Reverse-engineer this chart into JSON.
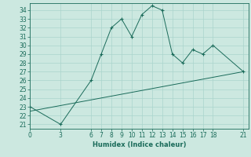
{
  "xlabel": "Humidex (Indice chaleur)",
  "ylabel": "",
  "bg_color": "#cce8e0",
  "grid_color": "#aad4cc",
  "line_color": "#1a6b5a",
  "x_ticks": [
    0,
    3,
    6,
    7,
    8,
    9,
    10,
    11,
    12,
    13,
    14,
    15,
    16,
    17,
    18,
    21
  ],
  "y_ticks": [
    21,
    22,
    23,
    24,
    25,
    26,
    27,
    28,
    29,
    30,
    31,
    32,
    33,
    34
  ],
  "ylim": [
    20.5,
    34.8
  ],
  "xlim": [
    0,
    21.5
  ],
  "line1_x": [
    0,
    3,
    6,
    7,
    8,
    9,
    10,
    11,
    12,
    13,
    14,
    15,
    16,
    17,
    18,
    21
  ],
  "line1_y": [
    23.0,
    21.0,
    26.0,
    29.0,
    32.0,
    33.0,
    31.0,
    33.5,
    34.5,
    34.0,
    29.0,
    28.0,
    29.5,
    29.0,
    30.0,
    27.0
  ],
  "line2_x": [
    0,
    21
  ],
  "line2_y": [
    22.5,
    27.0
  ],
  "tick_fontsize": 5.5,
  "xlabel_fontsize": 6.0
}
